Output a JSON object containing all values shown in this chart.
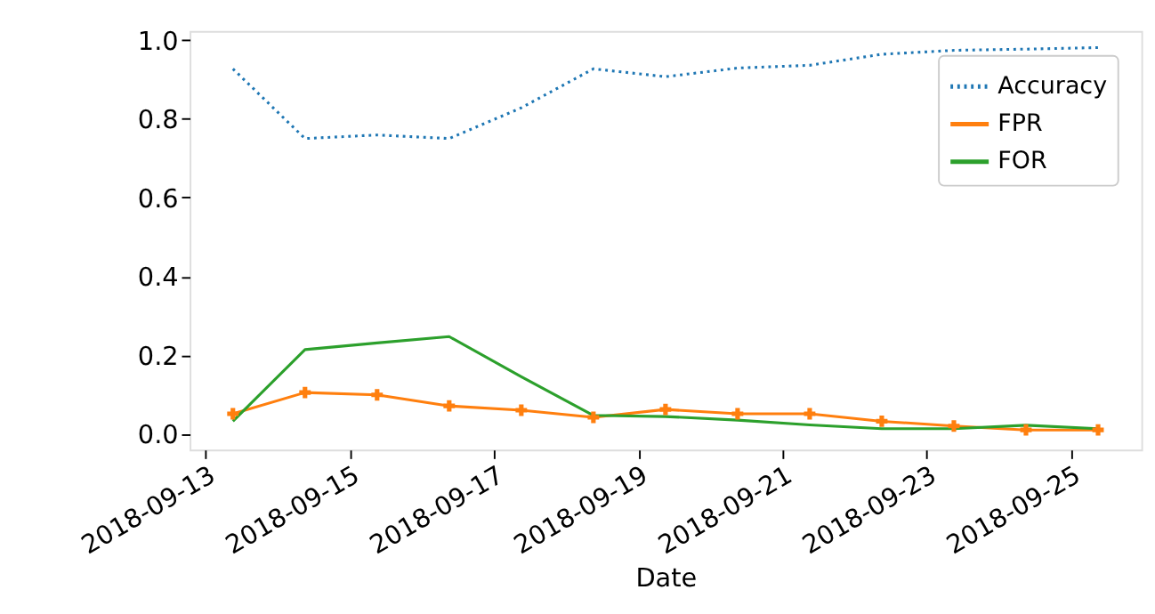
{
  "chart_data": {
    "type": "line",
    "xlabel": "Date",
    "x": [
      "2018-09-13T09:00",
      "2018-09-14T09:00",
      "2018-09-15T09:00",
      "2018-09-16T09:00",
      "2018-09-17T09:00",
      "2018-09-18T09:00",
      "2018-09-19T09:00",
      "2018-09-20T09:00",
      "2018-09-21T09:00",
      "2018-09-22T09:00",
      "2018-09-23T09:00",
      "2018-09-24T09:00",
      "2018-09-25T09:00"
    ],
    "series": [
      {
        "name": "Accuracy",
        "color": "#1f77b4",
        "line_style": "dotted",
        "marker": "none",
        "values": [
          0.927,
          0.75,
          0.759,
          0.75,
          0.828,
          0.927,
          0.907,
          0.929,
          0.936,
          0.964,
          0.974,
          0.977,
          0.981
        ]
      },
      {
        "name": "FPR",
        "color": "#ff7f0e",
        "line_style": "solid",
        "marker": "cross",
        "values": [
          0.051,
          0.105,
          0.099,
          0.071,
          0.06,
          0.042,
          0.062,
          0.051,
          0.051,
          0.032,
          0.02,
          0.01,
          0.01
        ]
      },
      {
        "name": "FOR",
        "color": "#2ca02c",
        "line_style": "solid",
        "marker": "none",
        "values": [
          0.032,
          0.214,
          0.231,
          0.247,
          0.145,
          0.047,
          0.044,
          0.035,
          0.023,
          0.013,
          0.013,
          0.022,
          0.013
        ]
      }
    ],
    "xlim": [
      "2018-09-12T18:36",
      "2018-09-25T23:24"
    ],
    "xticks": [
      "2018-09-13",
      "2018-09-15",
      "2018-09-17",
      "2018-09-19",
      "2018-09-21",
      "2018-09-23",
      "2018-09-25"
    ],
    "ylim": [
      -0.04,
      1.023
    ],
    "yticks": [
      {
        "value": 0,
        "label": "0.0"
      },
      {
        "value": 0.2,
        "label": "0.2"
      },
      {
        "value": 0.4,
        "label": "0.4"
      },
      {
        "value": 0.6,
        "label": "0.6"
      },
      {
        "value": 0.8,
        "label": "0.8"
      },
      {
        "value": 1.0,
        "label": "1.0"
      }
    ],
    "legend": "top right",
    "grid": false
  }
}
